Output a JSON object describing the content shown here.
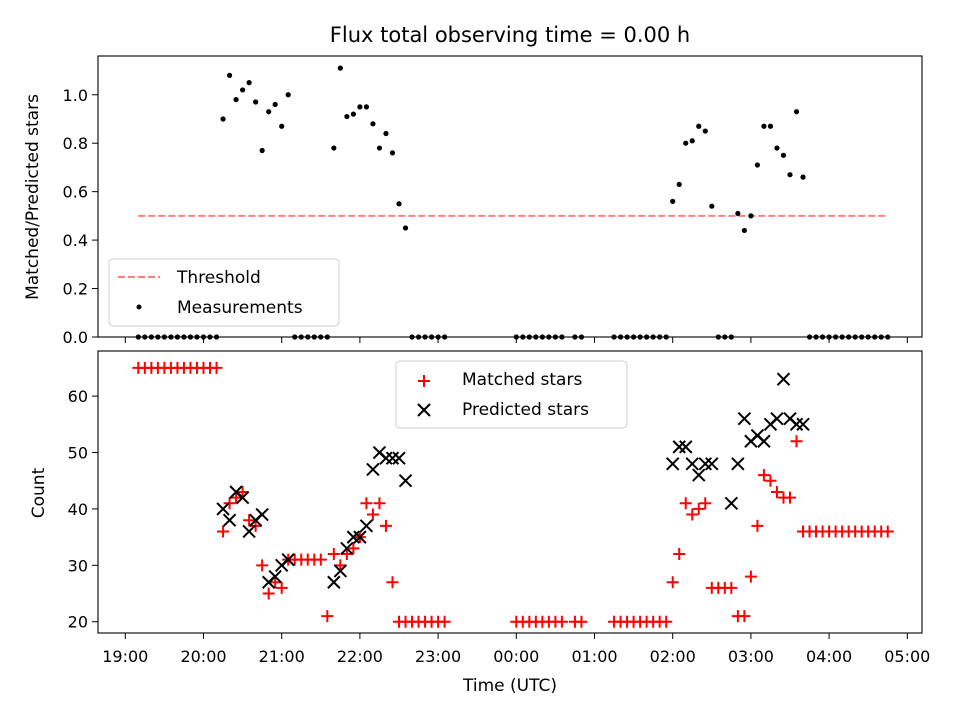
{
  "chart_data": [
    {
      "type": "scatter",
      "title": "Flux total observing time = 0.00 h",
      "xlabel": "",
      "ylabel": "Matched/Predicted stars",
      "xlim": [
        "19:00",
        "04:50"
      ],
      "ylim": [
        0,
        1.16
      ],
      "yticks": [
        "0.0",
        "0.2",
        "0.4",
        "0.6",
        "0.8",
        "1.0"
      ],
      "ytick_values": [
        0,
        0.2,
        0.4,
        0.6,
        0.8,
        1.0
      ],
      "grid": false,
      "legend": "lower-left",
      "series": [
        {
          "name": "Threshold",
          "style": "dashed-line",
          "color": "#ff7f7f",
          "x": [
            "19:10",
            "04:45"
          ],
          "y": [
            0.5,
            0.5
          ]
        },
        {
          "name": "Measurements",
          "style": "dot",
          "color": "#000000",
          "x": [
            "19:10",
            "19:15",
            "19:20",
            "19:25",
            "19:30",
            "19:35",
            "19:40",
            "19:45",
            "19:50",
            "19:55",
            "20:00",
            "20:05",
            "20:10",
            "20:15",
            "20:20",
            "20:25",
            "20:30",
            "20:35",
            "20:40",
            "20:45",
            "20:50",
            "20:55",
            "21:00",
            "21:05",
            "21:10",
            "21:15",
            "21:20",
            "21:25",
            "21:30",
            "21:35",
            "21:40",
            "21:45",
            "21:50",
            "21:55",
            "22:00",
            "22:05",
            "22:10",
            "22:15",
            "22:20",
            "22:25",
            "22:30",
            "22:35",
            "22:40",
            "22:45",
            "22:50",
            "22:55",
            "23:00",
            "23:05",
            "00:00",
            "00:05",
            "00:10",
            "00:15",
            "00:20",
            "00:25",
            "00:30",
            "00:35",
            "00:45",
            "00:50",
            "01:15",
            "01:20",
            "01:25",
            "01:30",
            "01:35",
            "01:40",
            "01:45",
            "01:50",
            "01:55",
            "02:00",
            "02:05",
            "02:10",
            "02:15",
            "02:20",
            "02:25",
            "02:30",
            "02:35",
            "02:40",
            "02:45",
            "02:50",
            "02:55",
            "03:00",
            "03:05",
            "03:10",
            "03:15",
            "03:20",
            "03:25",
            "03:30",
            "03:35",
            "03:40",
            "03:45",
            "03:50",
            "03:55",
            "04:00",
            "04:05",
            "04:10",
            "04:15",
            "04:20",
            "04:25",
            "04:30",
            "04:35",
            "04:40",
            "04:45"
          ],
          "y": [
            0,
            0,
            0,
            0,
            0,
            0,
            0,
            0,
            0,
            0,
            0,
            0,
            0,
            0.9,
            1.08,
            0.98,
            1.02,
            1.05,
            0.97,
            0.77,
            0.93,
            0.96,
            0.87,
            1.0,
            0,
            0,
            0,
            0,
            0,
            0,
            0.78,
            1.11,
            0.91,
            0.92,
            0.95,
            0.95,
            0.88,
            0.78,
            0.84,
            0.76,
            0.55,
            0.45,
            0,
            0,
            0,
            0,
            0,
            0,
            0,
            0,
            0,
            0,
            0,
            0,
            0,
            0,
            0,
            0,
            0,
            0,
            0,
            0,
            0,
            0,
            0,
            0,
            0,
            0.56,
            0.63,
            0.8,
            0.81,
            0.87,
            0.85,
            0.54,
            0,
            0,
            0,
            0.51,
            0.44,
            0.5,
            0.71,
            0.87,
            0.87,
            0.78,
            0.75,
            0.67,
            0.93,
            0.66,
            0,
            0,
            0,
            0,
            0,
            0,
            0,
            0,
            0,
            0,
            0,
            0,
            0
          ]
        }
      ]
    },
    {
      "type": "scatter",
      "title": "",
      "xlabel": "Time (UTC)",
      "ylabel": "Count",
      "xlim": [
        "19:00",
        "04:50"
      ],
      "ylim": [
        18,
        68
      ],
      "xticks": [
        "19:00",
        "20:00",
        "21:00",
        "22:00",
        "23:00",
        "00:00",
        "01:00",
        "02:00",
        "03:00",
        "04:00",
        "05:00"
      ],
      "yticks": [
        "20",
        "30",
        "40",
        "50",
        "60"
      ],
      "ytick_values": [
        20,
        30,
        40,
        50,
        60
      ],
      "grid": false,
      "legend": "top-center",
      "series": [
        {
          "name": "Matched stars",
          "marker": "+",
          "color": "#ff0000",
          "x": [
            "19:10",
            "19:15",
            "19:20",
            "19:25",
            "19:30",
            "19:35",
            "19:40",
            "19:45",
            "19:50",
            "19:55",
            "20:00",
            "20:05",
            "20:10",
            "20:15",
            "20:20",
            "20:25",
            "20:30",
            "20:35",
            "20:40",
            "20:45",
            "20:50",
            "20:55",
            "21:00",
            "21:05",
            "21:10",
            "21:15",
            "21:20",
            "21:25",
            "21:30",
            "21:35",
            "21:40",
            "21:45",
            "21:50",
            "21:55",
            "22:00",
            "22:05",
            "22:10",
            "22:15",
            "22:20",
            "22:25",
            "22:30",
            "22:35",
            "22:40",
            "22:45",
            "22:50",
            "22:55",
            "23:00",
            "23:05",
            "00:00",
            "00:05",
            "00:10",
            "00:15",
            "00:20",
            "00:25",
            "00:30",
            "00:35",
            "00:45",
            "00:50",
            "01:15",
            "01:20",
            "01:25",
            "01:30",
            "01:35",
            "01:40",
            "01:45",
            "01:50",
            "01:55",
            "02:00",
            "02:05",
            "02:10",
            "02:15",
            "02:20",
            "02:25",
            "02:30",
            "02:35",
            "02:40",
            "02:45",
            "02:50",
            "02:55",
            "03:00",
            "03:05",
            "03:10",
            "03:15",
            "03:20",
            "03:25",
            "03:30",
            "03:35",
            "03:40",
            "03:45",
            "03:50",
            "03:55",
            "04:00",
            "04:05",
            "04:10",
            "04:15",
            "04:20",
            "04:25",
            "04:30",
            "04:35",
            "04:40",
            "04:45"
          ],
          "y": [
            65,
            65,
            65,
            65,
            65,
            65,
            65,
            65,
            65,
            65,
            65,
            65,
            65,
            36,
            41,
            42,
            43,
            38,
            37,
            30,
            25,
            27,
            26,
            31,
            31,
            31,
            31,
            31,
            31,
            21,
            32,
            30,
            32,
            33,
            35,
            41,
            39,
            41,
            37,
            27,
            20,
            20,
            20,
            20,
            20,
            20,
            20,
            20,
            20,
            20,
            20,
            20,
            20,
            20,
            20,
            20,
            20,
            20,
            20,
            20,
            20,
            20,
            20,
            20,
            20,
            20,
            20,
            27,
            32,
            41,
            39,
            40,
            41,
            26,
            26,
            26,
            26,
            21,
            21,
            28,
            37,
            46,
            45,
            43,
            42,
            42,
            52,
            36,
            36,
            36,
            36,
            36,
            36,
            36,
            36,
            36,
            36,
            36,
            36,
            36,
            36
          ]
        },
        {
          "name": "Predicted stars",
          "marker": "x",
          "color": "#000000",
          "x": [
            "20:15",
            "20:20",
            "20:25",
            "20:30",
            "20:35",
            "20:40",
            "20:45",
            "20:50",
            "20:55",
            "21:00",
            "21:05",
            "21:40",
            "21:45",
            "21:50",
            "21:55",
            "22:00",
            "22:05",
            "22:10",
            "22:15",
            "22:20",
            "22:25",
            "22:30",
            "22:35",
            "02:00",
            "02:05",
            "02:10",
            "02:15",
            "02:20",
            "02:25",
            "02:30",
            "02:45",
            "02:50",
            "02:55",
            "03:00",
            "03:05",
            "03:10",
            "03:15",
            "03:20",
            "03:25",
            "03:30",
            "03:35",
            "03:40"
          ],
          "y": [
            40,
            38,
            43,
            42,
            36,
            38,
            39,
            27,
            28,
            30,
            31,
            27,
            29,
            33,
            35,
            35,
            37,
            47,
            50,
            49,
            49,
            49,
            45,
            48,
            51,
            51,
            48,
            46,
            48,
            48,
            41,
            48,
            56,
            52,
            53,
            52,
            55,
            56,
            63,
            56,
            55,
            55
          ]
        }
      ]
    }
  ]
}
